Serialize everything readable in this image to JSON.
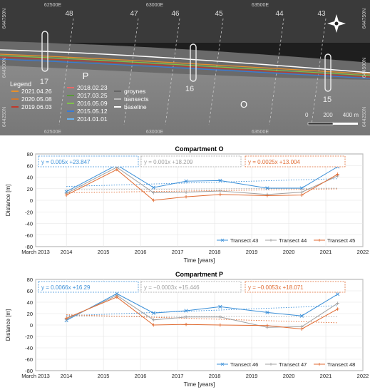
{
  "map": {
    "x_ticks": [
      "62500E",
      "63000E",
      "63500E"
    ],
    "y_ticks": [
      "644750N",
      "644500N",
      "644250N"
    ],
    "transect_numbers": [
      "48",
      "47",
      "46",
      "45",
      "44",
      "43"
    ],
    "groyne_labels": [
      "17",
      "16",
      "15"
    ],
    "compartments": [
      "P",
      "O"
    ],
    "scale": {
      "labels": [
        "0",
        "200",
        "400 m"
      ]
    },
    "legend": {
      "title": "Legend",
      "col1": [
        {
          "label": "2021.04.26",
          "color": "#e8902a"
        },
        {
          "label": "2020.05.08",
          "color": "#d4782c"
        },
        {
          "label": "2019.06.03",
          "color": "#c0392b"
        }
      ],
      "col2": [
        {
          "label": "2018.02.23",
          "color": "#e86a6a"
        },
        {
          "label": "2017.03.25",
          "color": "#5a9a3a"
        },
        {
          "label": "2016.05.09",
          "color": "#7fc24a"
        },
        {
          "label": "2015.05.12",
          "color": "#3a7bd5"
        },
        {
          "label": "2014.01.01",
          "color": "#6ab4f0"
        }
      ],
      "col3": [
        {
          "label": "groynes",
          "color": "#666666"
        },
        {
          "label": "transects",
          "color": "#bbbbbb"
        },
        {
          "label": "baseline",
          "color": "#ffffff"
        }
      ]
    }
  },
  "charts": [
    {
      "id": "O",
      "chart_data": {
        "type": "line",
        "title": "Compartment O",
        "xlabel": "Time [years]",
        "ylabel": "Distance [m]",
        "xlim": [
          2013.17,
          2022
        ],
        "ylim": [
          -80,
          80
        ],
        "x_ticks": [
          "March 2013",
          "2014",
          "2015",
          "2016",
          "2017",
          "2018",
          "2019",
          "2020",
          "2021",
          "2022"
        ],
        "y_ticks": [
          -80,
          -60,
          -40,
          -20,
          0,
          20,
          40,
          60,
          80
        ],
        "grid": true,
        "legend_position": "bottom-right",
        "x": [
          2014.0,
          2015.36,
          2016.35,
          2017.23,
          2018.15,
          2019.42,
          2020.35,
          2021.32
        ],
        "series": [
          {
            "name": "Transect 43",
            "color": "#3a8fd8",
            "marker": "x",
            "values": [
              15,
              61,
              22,
              33,
              34,
              21,
              21,
              58
            ],
            "trend": {
              "label": "y = 0.005x +23.847",
              "m": 0.005,
              "b": 23.847
            }
          },
          {
            "name": "Transect 44",
            "color": "#a0a0a0",
            "marker": "+",
            "values": [
              12,
              57,
              13,
              14,
              16,
              10,
              14,
              42
            ],
            "trend": {
              "label": "y = 0.001x +18.209",
              "m": 0.001,
              "b": 18.209
            }
          },
          {
            "name": "Transect 45",
            "color": "#e06a30",
            "marker": "+",
            "values": [
              9,
              53,
              0,
              6,
              10,
              8,
              9,
              45
            ],
            "trend": {
              "label": "y = 0.0025x +13.004",
              "m": 0.0025,
              "b": 13.004
            }
          }
        ]
      }
    },
    {
      "id": "P",
      "chart_data": {
        "type": "line",
        "title": "Compartment P",
        "xlabel": "Time [years]",
        "ylabel": "Distance [m]",
        "xlim": [
          2013.17,
          2022
        ],
        "ylim": [
          -80,
          80
        ],
        "x_ticks": [
          "March 2013",
          "2014",
          "2015",
          "2016",
          "2017",
          "2018",
          "2019",
          "2020",
          "2021",
          "2022"
        ],
        "y_ticks": [
          -80,
          -60,
          -40,
          -20,
          0,
          20,
          40,
          60,
          80
        ],
        "grid": true,
        "legend_position": "bottom-right",
        "x": [
          2014.0,
          2015.36,
          2016.35,
          2017.23,
          2018.15,
          2019.42,
          2020.35,
          2021.32
        ],
        "series": [
          {
            "name": "Transect 46",
            "color": "#3a8fd8",
            "marker": "x",
            "values": [
              8,
              55,
              21,
              25,
              32,
              22,
              16,
              54
            ],
            "trend": {
              "label": "y = 0.0066x +16.29",
              "m": 0.0066,
              "b": 16.29
            }
          },
          {
            "name": "Transect 47",
            "color": "#a0a0a0",
            "marker": "+",
            "values": [
              10,
              52,
              9,
              14,
              14,
              -4,
              -3,
              38
            ],
            "trend": {
              "label": "y = −0.0003x +15.446",
              "m": -0.0003,
              "b": 15.446
            }
          },
          {
            "name": "Transect 48",
            "color": "#e06a30",
            "marker": "+",
            "values": [
              12,
              49,
              0,
              1,
              0,
              -1,
              -7,
              28
            ],
            "trend": {
              "label": "y = −0.0053x +18.071",
              "m": -0.0053,
              "b": 18.071
            }
          }
        ]
      }
    }
  ]
}
